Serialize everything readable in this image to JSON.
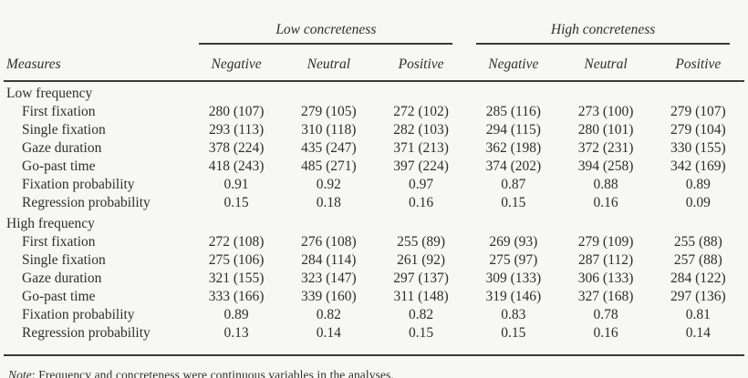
{
  "table": {
    "col_groups": [
      {
        "label": "Low concreteness"
      },
      {
        "label": "High concreteness"
      }
    ],
    "measures_header": "Measures",
    "sub_headers": [
      "Negative",
      "Neutral",
      "Positive",
      "Negative",
      "Neutral",
      "Positive"
    ],
    "sections": [
      {
        "label": "Low frequency",
        "rows": [
          {
            "label": "First fixation",
            "values": [
              "280 (107)",
              "279 (105)",
              "272 (102)",
              "285 (116)",
              "273 (100)",
              "279 (107)"
            ]
          },
          {
            "label": "Single fixation",
            "values": [
              "293 (113)",
              "310 (118)",
              "282 (103)",
              "294 (115)",
              "280 (101)",
              "279 (104)"
            ]
          },
          {
            "label": "Gaze duration",
            "values": [
              "378 (224)",
              "435 (247)",
              "371 (213)",
              "362 (198)",
              "372 (231)",
              "330 (155)"
            ]
          },
          {
            "label": "Go-past time",
            "values": [
              "418 (243)",
              "485 (271)",
              "397 (224)",
              "374 (202)",
              "394 (258)",
              "342 (169)"
            ]
          },
          {
            "label": "Fixation probability",
            "values": [
              "0.91",
              "0.92",
              "0.97",
              "0.87",
              "0.88",
              "0.89"
            ]
          },
          {
            "label": "Regression probability",
            "values": [
              "0.15",
              "0.18",
              "0.16",
              "0.15",
              "0.16",
              "0.09"
            ]
          }
        ]
      },
      {
        "label": "High frequency",
        "rows": [
          {
            "label": "First fixation",
            "values": [
              "272 (108)",
              "276 (108)",
              "255 (89)",
              "269 (93)",
              "279 (109)",
              "255 (88)"
            ]
          },
          {
            "label": "Single fixation",
            "values": [
              "275 (106)",
              "284 (114)",
              "261 (92)",
              "275 (97)",
              "287 (112)",
              "257 (88)"
            ]
          },
          {
            "label": "Gaze duration",
            "values": [
              "321 (155)",
              "323 (147)",
              "297 (137)",
              "309 (133)",
              "306 (133)",
              "284 (122)"
            ]
          },
          {
            "label": "Go-past time",
            "values": [
              "333 (166)",
              "339 (160)",
              "311 (148)",
              "319 (146)",
              "327 (168)",
              "297 (136)"
            ]
          },
          {
            "label": "Fixation probability",
            "values": [
              "0.89",
              "0.82",
              "0.82",
              "0.83",
              "0.78",
              "0.81"
            ]
          },
          {
            "label": "Regression probability",
            "values": [
              "0.13",
              "0.14",
              "0.15",
              "0.15",
              "0.16",
              "0.14"
            ]
          }
        ]
      }
    ],
    "note": {
      "label": "Note",
      "text": ": Frequency and concreteness were continuous variables in the analyses."
    }
  },
  "colors": {
    "background": "#f7f7f5",
    "text": "#2e2e2e",
    "rule": "#3a3a3a"
  }
}
